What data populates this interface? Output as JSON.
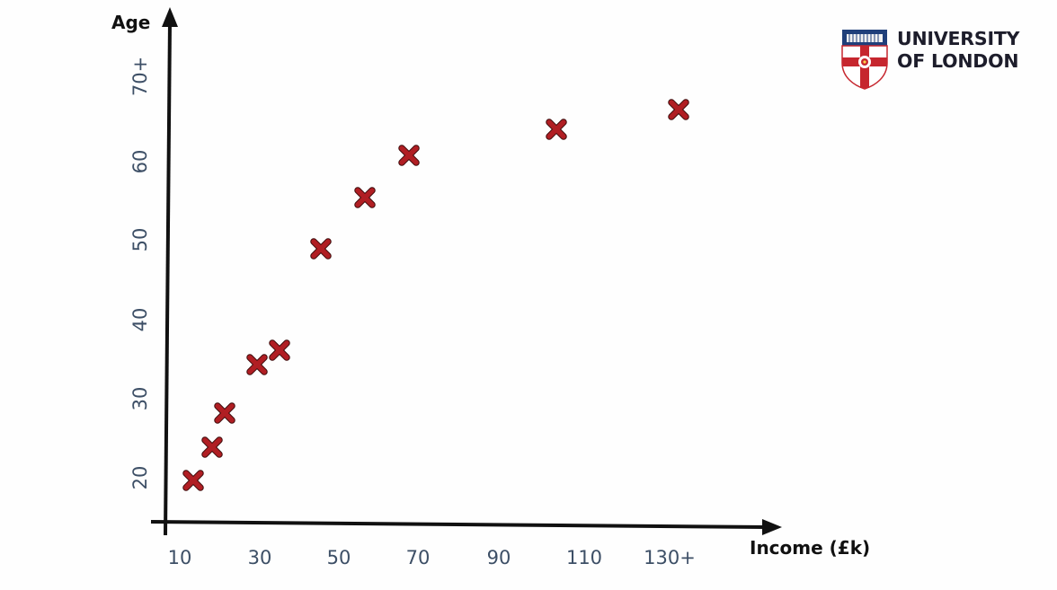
{
  "chart_data": {
    "type": "scatter",
    "title": "",
    "xlabel": "Income (£k)",
    "ylabel": "Age",
    "x_ticks": [
      {
        "value": 10,
        "label": "10"
      },
      {
        "value": 30,
        "label": "30"
      },
      {
        "value": 50,
        "label": "50"
      },
      {
        "value": 70,
        "label": "70"
      },
      {
        "value": 90,
        "label": "90"
      },
      {
        "value": 110,
        "label": "110"
      },
      {
        "value": 130,
        "label": "130+"
      }
    ],
    "y_ticks": [
      {
        "value": 20,
        "label": "20"
      },
      {
        "value": 30,
        "label": "30"
      },
      {
        "value": 40,
        "label": "40"
      },
      {
        "value": 50,
        "label": "50"
      },
      {
        "value": 60,
        "label": "60"
      },
      {
        "value": 70,
        "label": "70+"
      }
    ],
    "xlim": [
      5,
      152
    ],
    "ylim": [
      14,
      80
    ],
    "grid": false,
    "marker": "x",
    "marker_color": "#b01e23",
    "series": [
      {
        "points": [
          {
            "x": 13,
            "y": 20
          },
          {
            "x": 18,
            "y": 24
          },
          {
            "x": 21,
            "y": 28
          },
          {
            "x": 29,
            "y": 34
          },
          {
            "x": 35,
            "y": 36
          },
          {
            "x": 46,
            "y": 49
          },
          {
            "x": 57,
            "y": 55
          },
          {
            "x": 68,
            "y": 61
          },
          {
            "x": 104,
            "y": 64
          },
          {
            "x": 132,
            "y": 66
          }
        ]
      }
    ]
  },
  "logo": {
    "line1": "UNIVERSITY",
    "line2": "OF LONDON"
  }
}
